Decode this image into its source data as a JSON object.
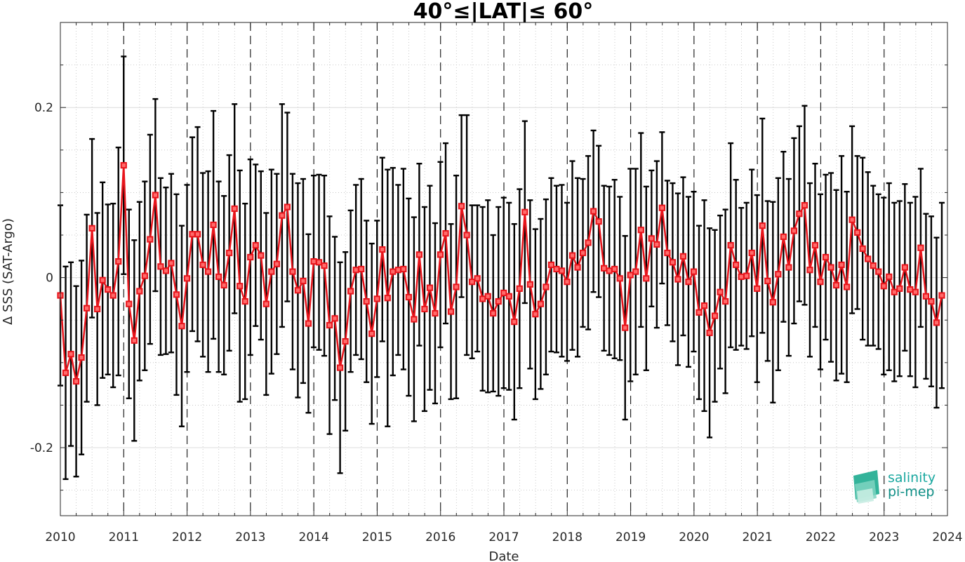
{
  "chart_data": {
    "type": "line",
    "title": "40°≤|LAT|≤ 60°",
    "xlabel": "Date",
    "ylabel": "Δ SSS (SAT-Argo)",
    "x_start": 2010,
    "x_step": 0.0833,
    "xlim": [
      2010,
      2024
    ],
    "ylim": [
      -0.28,
      0.3
    ],
    "xticks": [
      2010,
      2011,
      2012,
      2013,
      2014,
      2015,
      2016,
      2017,
      2018,
      2019,
      2020,
      2021,
      2022,
      2023,
      2024
    ],
    "yticks": [
      -0.2,
      0,
      0.2
    ],
    "ytick_labels": [
      "-0.2",
      "0",
      "0.2"
    ],
    "grid": true,
    "vertical_dashed_lines_at_years": true,
    "series": [
      {
        "color": "#e8141b",
        "marker": "square",
        "values": [
          -0.021,
          -0.112,
          -0.09,
          -0.122,
          -0.094,
          -0.036,
          0.058,
          -0.037,
          -0.003,
          -0.014,
          -0.021,
          0.019,
          0.132,
          -0.031,
          -0.074,
          -0.016,
          0.002,
          0.045,
          0.097,
          0.013,
          0.008,
          0.017,
          -0.02,
          -0.057,
          -0.001,
          0.051,
          0.051,
          0.015,
          0.007,
          0.062,
          0.001,
          -0.009,
          0.029,
          0.081,
          -0.01,
          -0.028,
          0.024,
          0.038,
          0.026,
          -0.031,
          0.007,
          0.016,
          0.073,
          0.083,
          0.007,
          -0.015,
          -0.004,
          -0.054,
          0.019,
          0.018,
          0.014,
          -0.056,
          -0.048,
          -0.106,
          -0.075,
          -0.016,
          0.009,
          0.01,
          -0.028,
          -0.066,
          -0.025,
          0.033,
          -0.024,
          0.007,
          0.009,
          0.01,
          -0.023,
          -0.049,
          0.027,
          -0.037,
          -0.012,
          -0.042,
          0.027,
          0.052,
          -0.04,
          -0.011,
          0.084,
          0.05,
          -0.005,
          -0.001,
          -0.025,
          -0.022,
          -0.042,
          -0.028,
          -0.018,
          -0.022,
          -0.052,
          -0.013,
          0.077,
          -0.008,
          -0.043,
          -0.031,
          -0.011,
          0.015,
          0.01,
          0.008,
          -0.005,
          0.026,
          0.012,
          0.029,
          0.041,
          0.078,
          0.066,
          0.011,
          0.008,
          0.01,
          -0.001,
          -0.059,
          0.003,
          0.007,
          0.056,
          -0.001,
          0.046,
          0.039,
          0.082,
          0.029,
          0.018,
          -0.002,
          0.025,
          -0.005,
          0.007,
          -0.041,
          -0.033,
          -0.065,
          -0.045,
          -0.017,
          -0.028,
          0.038,
          0.015,
          0.001,
          0.002,
          0.029,
          -0.013,
          0.061,
          -0.004,
          -0.029,
          0.004,
          0.048,
          0.012,
          0.055,
          0.075,
          0.085,
          0.009,
          0.038,
          -0.005,
          0.024,
          0.012,
          -0.009,
          0.015,
          -0.011,
          0.068,
          0.053,
          0.034,
          0.022,
          0.014,
          0.007,
          -0.01,
          0.001,
          -0.017,
          -0.013,
          0.012,
          -0.014,
          -0.017,
          0.035,
          -0.022,
          -0.028,
          -0.053,
          -0.021
        ],
        "errors": [
          0.106,
          0.125,
          0.108,
          0.112,
          0.114,
          0.11,
          0.105,
          0.113,
          0.115,
          0.1,
          0.108,
          0.134,
          0.128,
          0.111,
          0.118,
          0.105,
          0.111,
          0.123,
          0.113,
          0.104,
          0.098,
          0.105,
          0.118,
          0.118,
          0.11,
          0.114,
          0.126,
          0.108,
          0.118,
          0.134,
          0.112,
          0.105,
          0.115,
          0.123,
          0.136,
          0.115,
          0.115,
          0.095,
          0.099,
          0.107,
          0.12,
          0.106,
          0.131,
          0.111,
          0.115,
          0.126,
          0.12,
          0.105,
          0.101,
          0.103,
          0.106,
          0.128,
          0.096,
          0.124,
          0.105,
          0.095,
          0.1,
          0.106,
          0.095,
          0.106,
          0.092,
          0.108,
          0.151,
          0.122,
          0.1,
          0.118,
          0.116,
          0.12,
          0.107,
          0.12,
          0.12,
          0.106,
          0.109,
          0.106,
          0.103,
          0.131,
          0.107,
          0.141,
          0.09,
          0.086,
          0.108,
          0.113,
          0.092,
          0.111,
          0.112,
          0.11,
          0.115,
          0.117,
          0.107,
          0.099,
          0.1,
          0.1,
          0.103,
          0.102,
          0.098,
          0.101,
          0.093,
          0.111,
          0.105,
          0.087,
          0.102,
          0.095,
          0.089,
          0.097,
          0.099,
          0.105,
          0.096,
          0.108,
          0.125,
          0.121,
          0.114,
          0.108,
          0.08,
          0.098,
          0.089,
          0.085,
          0.093,
          0.101,
          0.093,
          0.1,
          0.094,
          0.102,
          0.124,
          0.123,
          0.101,
          0.09,
          0.108,
          0.12,
          0.1,
          0.081,
          0.086,
          0.098,
          0.11,
          0.126,
          0.094,
          0.118,
          0.113,
          0.1,
          0.104,
          0.109,
          0.103,
          0.117,
          0.102,
          0.096,
          0.103,
          0.097,
          0.111,
          0.112,
          0.128,
          0.112,
          0.11,
          0.09,
          0.107,
          0.102,
          0.094,
          0.091,
          0.104,
          0.11,
          0.105,
          0.103,
          0.098,
          0.102,
          0.112,
          0.093,
          0.097,
          0.1,
          0.1,
          0.109
        ]
      }
    ]
  },
  "logo": {
    "line1": "salinity",
    "line2": "pi-mep"
  }
}
